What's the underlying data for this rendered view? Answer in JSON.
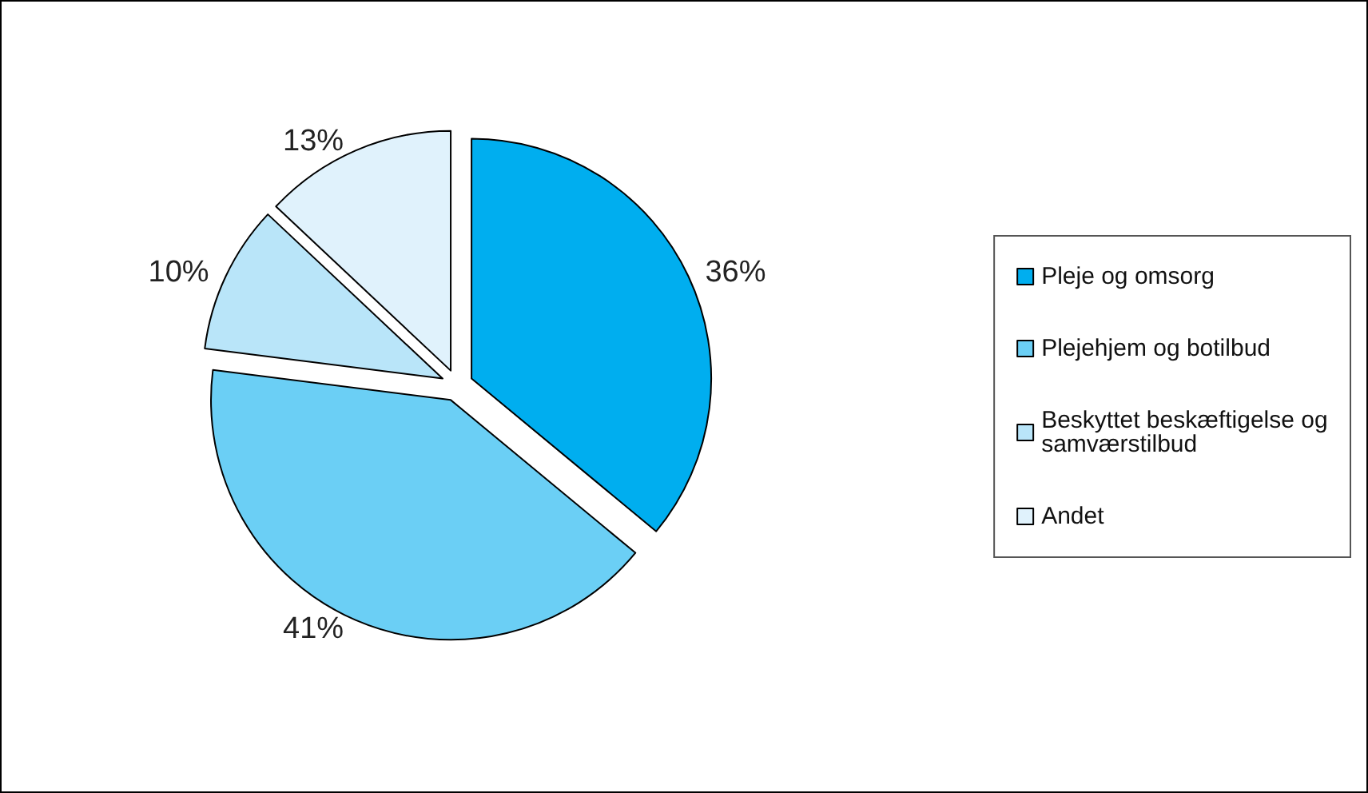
{
  "chart_data": {
    "type": "pie",
    "categories": [
      "Pleje og omsorg",
      "Plejehjem og botilbud",
      "Beskyttet beskæftigelse og samværstilbud",
      "Andet"
    ],
    "values": [
      36,
      41,
      10,
      13
    ],
    "value_labels": [
      "36%",
      "41%",
      "10%",
      "13%"
    ],
    "colors": [
      "#00aeef",
      "#6bcff5",
      "#b9e5f9",
      "#e0f2fc"
    ],
    "legend": "right"
  }
}
